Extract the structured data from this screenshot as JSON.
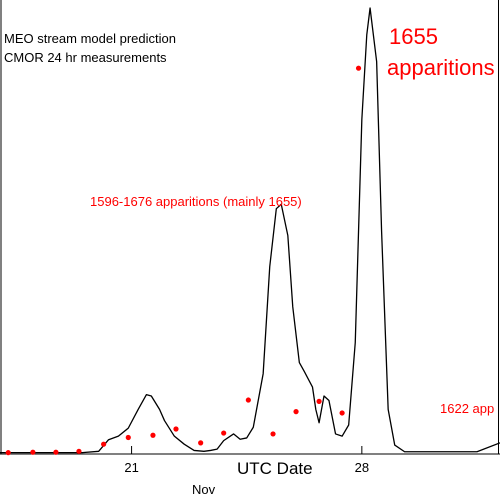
{
  "legend": {
    "model": "MEO stream model prediction",
    "measurements": "CMOR 24 hr measurements"
  },
  "annotations": {
    "peak_1655_line1": "1655",
    "peak_1655_line2": "apparitions",
    "mid_peak": "1596-1676 apparitions (mainly 1655)",
    "right_label": "1622 app"
  },
  "colors": {
    "model_line": "#000000",
    "measurements": "#ff0000",
    "annotation": "#ff0000",
    "axis": "#000000"
  },
  "chart_data": {
    "type": "line",
    "xlabel": "UTC Date",
    "month_label": "Nov",
    "x_ticks": [
      {
        "x": 21,
        "label": "21"
      },
      {
        "x": 28,
        "label": "28"
      }
    ],
    "xlim": [
      17.0,
      32.2
    ],
    "ylim": [
      0,
      100
    ],
    "series": [
      {
        "name": "MEO stream model prediction",
        "style": "line",
        "points": [
          [
            17.0,
            0.3
          ],
          [
            19.5,
            0.3
          ],
          [
            20.0,
            0.6
          ],
          [
            20.3,
            3.2
          ],
          [
            20.6,
            4.0
          ],
          [
            20.9,
            5.8
          ],
          [
            21.2,
            10.0
          ],
          [
            21.45,
            13.3
          ],
          [
            21.6,
            13.0
          ],
          [
            21.85,
            10.0
          ],
          [
            22.0,
            7.5
          ],
          [
            22.3,
            4.0
          ],
          [
            22.6,
            2.2
          ],
          [
            22.9,
            0.8
          ],
          [
            23.2,
            0.6
          ],
          [
            23.4,
            0.8
          ],
          [
            23.6,
            1.1
          ],
          [
            23.8,
            3.0
          ],
          [
            24.1,
            4.5
          ],
          [
            24.3,
            3.3
          ],
          [
            24.5,
            3.6
          ],
          [
            24.7,
            6.0
          ],
          [
            25.0,
            18.0
          ],
          [
            25.2,
            42.0
          ],
          [
            25.4,
            55.0
          ],
          [
            25.55,
            56.0
          ],
          [
            25.75,
            49.0
          ],
          [
            25.9,
            33.0
          ],
          [
            26.1,
            20.5
          ],
          [
            26.25,
            18.5
          ],
          [
            26.5,
            15.0
          ],
          [
            26.6,
            10.0
          ],
          [
            26.7,
            7.0
          ],
          [
            26.85,
            13.0
          ],
          [
            27.0,
            12.0
          ],
          [
            27.2,
            4.5
          ],
          [
            27.4,
            4.0
          ],
          [
            27.6,
            6.5
          ],
          [
            27.8,
            25.0
          ],
          [
            28.0,
            75.0
          ],
          [
            28.15,
            94.0
          ],
          [
            28.25,
            100.0
          ],
          [
            28.45,
            88.0
          ],
          [
            28.6,
            50.0
          ],
          [
            28.8,
            10.0
          ],
          [
            29.0,
            2.0
          ],
          [
            29.3,
            0.5
          ],
          [
            31.5,
            0.5
          ],
          [
            32.2,
            2.5
          ]
        ]
      },
      {
        "name": "CMOR 24 hr measurements",
        "style": "markers",
        "points": [
          [
            17.25,
            0.3
          ],
          [
            18.0,
            0.4
          ],
          [
            18.7,
            0.4
          ],
          [
            19.4,
            0.6
          ],
          [
            20.15,
            2.2
          ],
          [
            20.9,
            3.7
          ],
          [
            21.65,
            4.2
          ],
          [
            22.35,
            5.6
          ],
          [
            23.1,
            2.5
          ],
          [
            23.8,
            4.7
          ],
          [
            24.55,
            12.1
          ],
          [
            25.3,
            4.5
          ],
          [
            26.0,
            9.5
          ],
          [
            26.7,
            11.8
          ],
          [
            27.4,
            9.2
          ],
          [
            27.9,
            86.5
          ]
        ]
      }
    ]
  }
}
